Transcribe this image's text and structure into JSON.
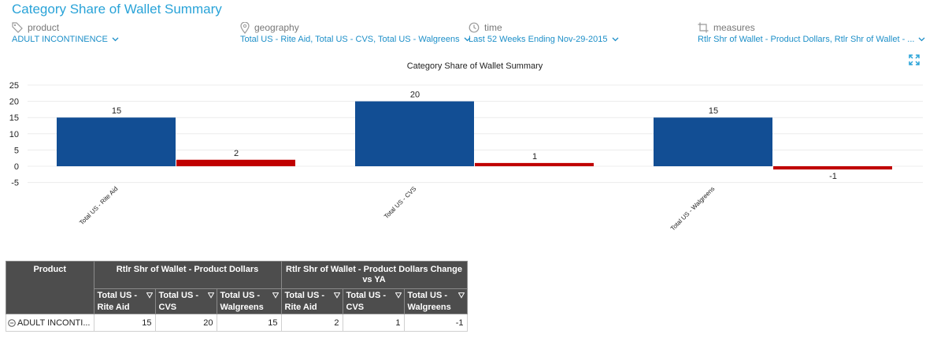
{
  "page_title": "Category Share of Wallet Summary",
  "filters": [
    {
      "label": "product",
      "value": "ADULT INCONTINENCE",
      "icon": "tag-icon"
    },
    {
      "label": "geography",
      "value": "Total US - Rite Aid, Total US - CVS, Total US - Walgreens",
      "icon": "map-pin-icon"
    },
    {
      "label": "time",
      "value": "Last 52 Weeks Ending Nov-29-2015",
      "icon": "clock-icon"
    },
    {
      "label": "measures",
      "value": "Rtlr Shr of Wallet - Product Dollars, Rtlr Shr of Wallet - ...",
      "icon": "crop-icon"
    }
  ],
  "chart_data": {
    "type": "bar",
    "title": "Category Share of Wallet Summary",
    "categories": [
      "Total US - Rite Aid",
      "Total US - CVS",
      "Total US - Walgreens"
    ],
    "series": [
      {
        "values": [
          15,
          20,
          15
        ],
        "color": "#124e94"
      },
      {
        "values": [
          2,
          1,
          -1
        ],
        "color": "#c00000"
      }
    ],
    "ylim": [
      -5,
      25
    ],
    "yticks": [
      -5,
      0,
      5,
      10,
      15,
      20,
      25
    ],
    "grid": true,
    "data_labels": true
  },
  "table": {
    "product_header": "Product",
    "group_headers": [
      "Rtlr Shr of Wallet - Product Dollars",
      "Rtlr Shr of Wallet - Product Dollars Change vs YA"
    ],
    "sub_headers": [
      "Total US - Rite Aid",
      "Total US - CVS",
      "Total US - Walgreens",
      "Total US - Rite Aid",
      "Total US - CVS",
      "Total US - Walgreens"
    ],
    "rows": [
      {
        "label": "ADULT INCONTI...",
        "values": [
          "15",
          "20",
          "15",
          "2",
          "1",
          "-1"
        ]
      }
    ]
  }
}
